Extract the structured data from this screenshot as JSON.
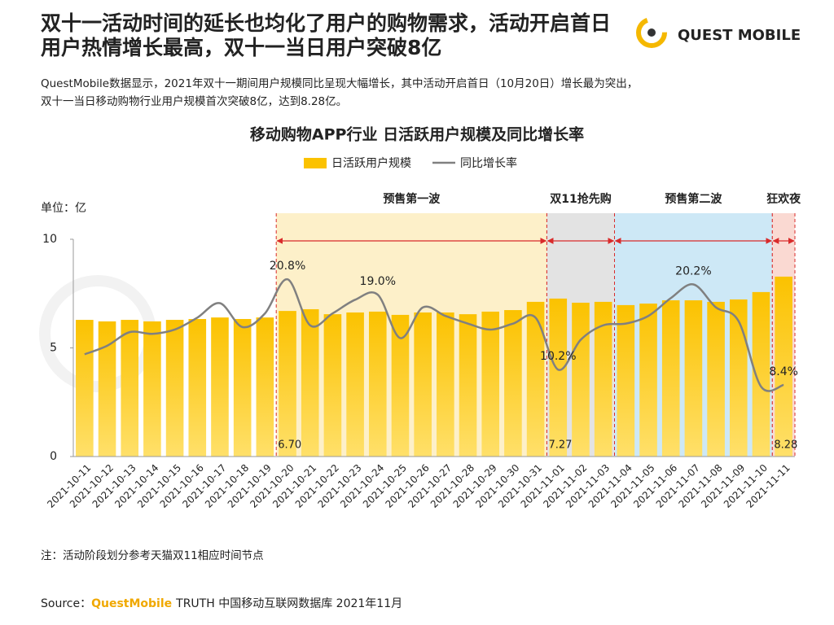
{
  "header": {
    "title": [
      "双十一活动时间的延长也均化了用户的购物需求，活动开启首日",
      "用户热情增长最高，双十一当日用户突破8亿"
    ],
    "logo": "QUEST MOBILE",
    "description": [
      "QuestMobile数据显示，2021年双十一期间用户规模同比呈现大幅增长，其中活动开启首日（10月20日）增长最为突出，",
      "双十一当日移动购物行业用户规模首次突破8亿，达到8.28亿。"
    ]
  },
  "chart_data": {
    "type": "bar",
    "title": "移动购物APP行业 日活跃用户规模及同比增长率",
    "unit_label": "单位：亿",
    "categories": [
      "2021-10-11",
      "2021-10-12",
      "2021-10-13",
      "2021-10-14",
      "2021-10-15",
      "2021-10-16",
      "2021-10-17",
      "2021-10-18",
      "2021-10-19",
      "2021-10-20",
      "2021-10-21",
      "2021-10-22",
      "2021-10-23",
      "2021-10-24",
      "2021-10-25",
      "2021-10-26",
      "2021-10-27",
      "2021-10-28",
      "2021-10-29",
      "2021-10-30",
      "2021-10-31",
      "2021-11-01",
      "2021-11-02",
      "2021-11-03",
      "2021-11-04",
      "2021-11-05",
      "2021-11-06",
      "2021-11-07",
      "2021-11-08",
      "2021-11-09",
      "2021-11-10",
      "2021-11-11"
    ],
    "series": [
      {
        "name": "日活跃用户规模",
        "type": "bar",
        "color": "#fbc200",
        "values": [
          6.29,
          6.22,
          6.29,
          6.22,
          6.29,
          6.33,
          6.4,
          6.33,
          6.4,
          6.7,
          6.78,
          6.55,
          6.63,
          6.67,
          6.52,
          6.63,
          6.63,
          6.55,
          6.67,
          6.74,
          7.12,
          7.27,
          7.08,
          7.12,
          6.97,
          7.04,
          7.19,
          7.19,
          7.12,
          7.23,
          7.57,
          8.28
        ],
        "value_labels": [
          null,
          null,
          null,
          null,
          null,
          null,
          null,
          null,
          null,
          "6.70",
          null,
          null,
          null,
          null,
          null,
          null,
          null,
          null,
          null,
          null,
          null,
          "7.27",
          null,
          null,
          null,
          null,
          null,
          null,
          null,
          null,
          null,
          "8.28"
        ]
      },
      {
        "name": "同比增长率",
        "type": "line",
        "axis": "y2",
        "color": "#808080",
        "values": [
          12.0,
          13.0,
          14.6,
          14.4,
          14.9,
          16.3,
          18.0,
          15.2,
          16.8,
          20.8,
          15.4,
          16.8,
          18.4,
          19.0,
          13.9,
          17.5,
          16.5,
          15.6,
          14.9,
          15.6,
          16.3,
          10.2,
          13.7,
          15.4,
          15.6,
          16.5,
          18.6,
          20.2,
          17.5,
          15.9,
          8.2,
          8.4
        ],
        "value_labels": [
          null,
          null,
          null,
          null,
          null,
          null,
          null,
          null,
          null,
          "20.8%",
          null,
          null,
          null,
          "19.0%",
          null,
          null,
          null,
          null,
          null,
          null,
          null,
          "10.2%",
          null,
          null,
          null,
          null,
          null,
          "20.2%",
          null,
          null,
          null,
          "8.4%"
        ]
      }
    ],
    "ylim": [
      0,
      10
    ],
    "yticks": [
      0,
      5,
      10
    ],
    "y2lim": [
      0,
      25.5
    ],
    "phases": [
      {
        "label": "预售第一波",
        "start": "2021-10-20",
        "end": "2021-10-31",
        "color": "#fdf0c9"
      },
      {
        "label": "双11抢先购",
        "start": "2021-11-01",
        "end": "2021-11-03",
        "color": "#e3e3e3"
      },
      {
        "label": "预售第二波",
        "start": "2021-11-04",
        "end": "2021-11-10",
        "color": "#cde8f6"
      },
      {
        "label": "狂欢夜",
        "start": "2021-11-11",
        "end": "2021-11-11",
        "color": "#fad9d2"
      }
    ]
  },
  "footer": {
    "note": "注：活动阶段划分参考天猫双11相应时间节点",
    "source_prefix": "Source：",
    "source_brand": "QuestMobile",
    "source_rest": "TRUTH 中国移动互联网数据库 2021年11月"
  }
}
